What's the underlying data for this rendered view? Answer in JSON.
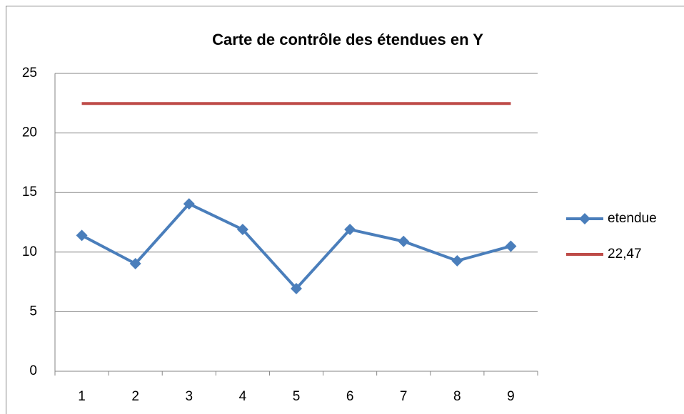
{
  "chart_data": {
    "type": "line",
    "title": "Carte de contrôle des étendues en Y",
    "categories": [
      "1",
      "2",
      "3",
      "4",
      "5",
      "6",
      "7",
      "8",
      "9"
    ],
    "series": [
      {
        "name": "etendue",
        "color": "#4a7ebb",
        "values": [
          11.4,
          9.03,
          14.05,
          11.9,
          6.94,
          11.9,
          10.9,
          9.27,
          10.5
        ]
      },
      {
        "name": "22,47",
        "color": "#be4b48",
        "values": [
          22.47,
          22.47,
          22.47,
          22.47,
          22.47,
          22.47,
          22.47,
          22.47,
          22.47
        ]
      }
    ],
    "ylim": [
      0,
      25
    ],
    "yticks": [
      0,
      5,
      10,
      15,
      20,
      25
    ],
    "grid": true,
    "legend": "right"
  }
}
